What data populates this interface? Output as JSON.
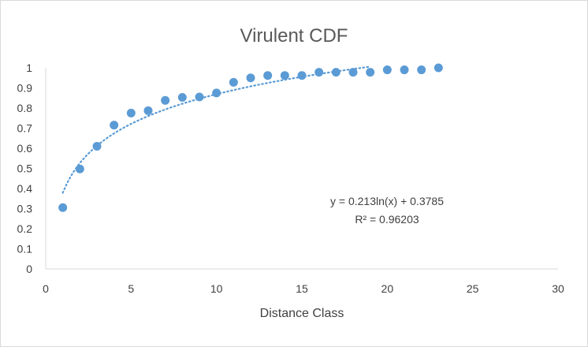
{
  "chart_data": {
    "type": "scatter",
    "title": "Virulent CDF",
    "xlabel": "Distance Class",
    "ylabel": "",
    "xlim": [
      0,
      30
    ],
    "ylim": [
      0,
      1
    ],
    "x_ticks": [
      "0",
      "5",
      "10",
      "15",
      "20",
      "25",
      "30"
    ],
    "y_ticks": [
      "0",
      "0.1",
      "0.2",
      "0.3",
      "0.4",
      "0.5",
      "0.6",
      "0.7",
      "0.8",
      "0.9",
      "1"
    ],
    "grid": false,
    "legend": "none",
    "series": [
      {
        "color": "#5b9bd5",
        "x": [
          1,
          2,
          3,
          4,
          5,
          6,
          7,
          8,
          9,
          10,
          11,
          12,
          13,
          14,
          15,
          16,
          17,
          18,
          19,
          20,
          21,
          22,
          23
        ],
        "y": [
          0.305,
          0.497,
          0.61,
          0.715,
          0.775,
          0.787,
          0.838,
          0.853,
          0.855,
          0.875,
          0.928,
          0.95,
          0.962,
          0.962,
          0.962,
          0.978,
          0.978,
          0.978,
          0.978,
          0.99,
          0.99,
          0.99,
          1.0
        ]
      }
    ],
    "trendline": {
      "type": "logarithmic",
      "a": 0.213,
      "b": 0.3785,
      "x_range": [
        1,
        19
      ],
      "color": "#5b9bd5",
      "style": "dotted",
      "equation": "y = 0.213ln(x) + 0.3785",
      "r_squared": "R² = 0.96203"
    }
  }
}
